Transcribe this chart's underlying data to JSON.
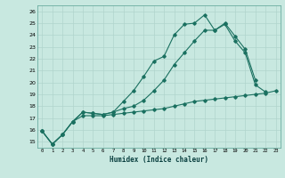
{
  "xlabel": "Humidex (Indice chaleur)",
  "bg_color": "#c8e8e0",
  "grid_color": "#b0d4cc",
  "line_color": "#1a7060",
  "x_ticks": [
    0,
    1,
    2,
    3,
    4,
    5,
    6,
    7,
    8,
    9,
    10,
    11,
    12,
    13,
    14,
    15,
    16,
    17,
    18,
    19,
    20,
    21,
    22,
    23
  ],
  "y_ticks": [
    15,
    16,
    17,
    18,
    19,
    20,
    21,
    22,
    23,
    24,
    25,
    26
  ],
  "xlim": [
    -0.5,
    23.5
  ],
  "ylim": [
    14.5,
    26.5
  ],
  "line_upper": {
    "x": [
      0,
      1,
      2,
      3,
      4,
      5,
      6,
      7,
      8,
      9,
      10,
      11,
      12,
      13,
      14,
      15,
      16,
      17,
      18,
      19,
      20,
      21
    ],
    "y": [
      15.9,
      14.8,
      15.6,
      16.7,
      17.5,
      17.4,
      17.3,
      17.5,
      18.4,
      19.3,
      20.5,
      21.8,
      22.2,
      24.0,
      24.9,
      25.0,
      25.7,
      24.4,
      25.0,
      23.9,
      22.8,
      20.2
    ]
  },
  "line_mid": {
    "x": [
      0,
      1,
      2,
      3,
      4,
      5,
      6,
      7,
      8,
      9,
      10,
      11,
      12,
      13,
      14,
      15,
      16,
      17,
      18,
      19,
      20,
      21,
      22,
      23
    ],
    "y": [
      15.9,
      14.8,
      15.6,
      16.7,
      17.5,
      17.4,
      17.3,
      17.5,
      17.8,
      18.0,
      18.5,
      19.3,
      20.2,
      21.5,
      22.5,
      23.5,
      24.4,
      24.4,
      24.9,
      23.5,
      22.5,
      19.8,
      19.2,
      null
    ]
  },
  "line_lower": {
    "x": [
      0,
      1,
      2,
      3,
      4,
      5,
      6,
      7,
      8,
      9,
      10,
      11,
      12,
      13,
      14,
      15,
      16,
      17,
      18,
      19,
      20,
      21,
      22,
      23
    ],
    "y": [
      15.9,
      14.8,
      15.6,
      16.7,
      17.2,
      17.2,
      17.2,
      17.3,
      17.4,
      17.5,
      17.6,
      17.7,
      17.8,
      18.0,
      18.2,
      18.4,
      18.5,
      18.6,
      18.7,
      18.8,
      18.9,
      19.0,
      19.1,
      19.3
    ]
  }
}
